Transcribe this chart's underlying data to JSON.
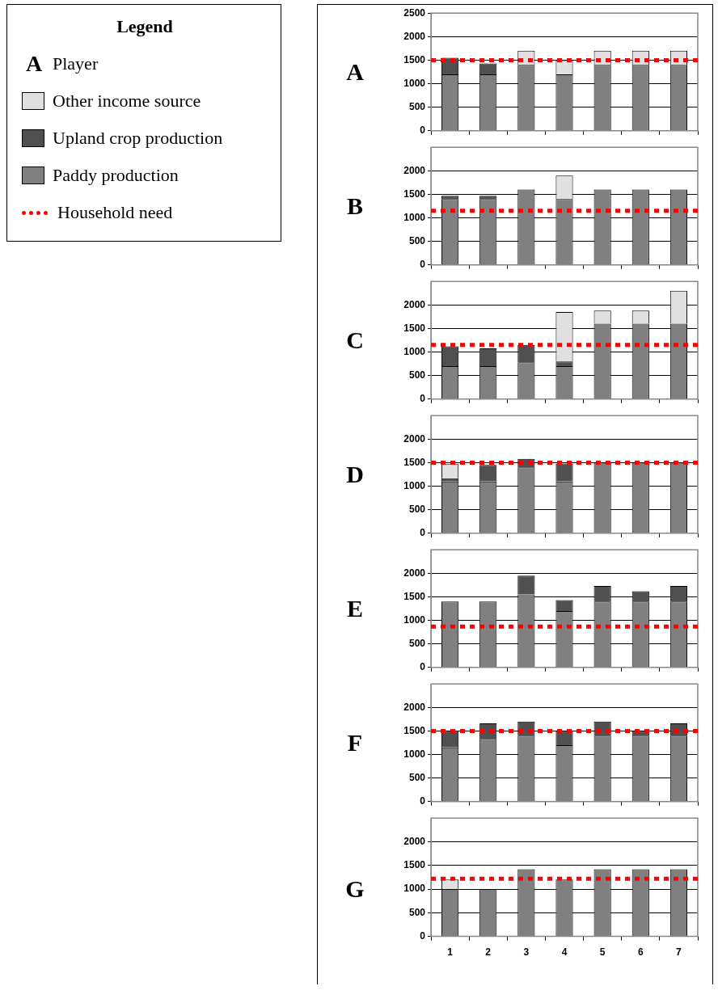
{
  "chart_data": [
    {
      "type": "bar",
      "title": "A",
      "legend_title": "Legend",
      "annotations": [
        "Player"
      ],
      "legend": "left",
      "stacked": true,
      "categories": [
        "1",
        "2",
        "3",
        "4",
        "5",
        "6",
        "7"
      ],
      "ylim": [
        0,
        2500
      ],
      "yticks": [
        0,
        500,
        1000,
        1500,
        2000,
        2500
      ],
      "grid": "y",
      "tick_labels": "y",
      "series": [
        {
          "name": "Paddy production",
          "color": "#808080",
          "values": [
            1200,
            1200,
            1400,
            1200,
            1400,
            1400,
            1400
          ]
        },
        {
          "name": "Upland crop production",
          "color": "#505050",
          "values": [
            350,
            230,
            null,
            null,
            null,
            null,
            null
          ]
        },
        {
          "name": "Other income source",
          "color": "#e0e0e0",
          "values": [
            null,
            null,
            300,
            300,
            300,
            300,
            300
          ]
        }
      ],
      "ref_lines": [
        {
          "axis": "y",
          "value": 1500,
          "label": "Household need",
          "color": "#ff0000",
          "line_style": "dotted"
        }
      ]
    },
    {
      "type": "bar",
      "title": "B",
      "stacked": true,
      "categories": [
        "1",
        "2",
        "3",
        "4",
        "5",
        "6",
        "7"
      ],
      "ylim": [
        0,
        2500
      ],
      "yticks": [
        0,
        500,
        1000,
        1500,
        2000
      ],
      "grid": "y",
      "tick_labels": "y",
      "series": [
        {
          "color": "#808080",
          "values": [
            1400,
            1400,
            1600,
            1400,
            1600,
            1600,
            1600
          ]
        },
        {
          "color": "#505050",
          "values": [
            70,
            70,
            null,
            null,
            null,
            null,
            null
          ]
        },
        {
          "color": "#e0e0e0",
          "values": [
            null,
            null,
            null,
            500,
            null,
            null,
            null
          ]
        }
      ],
      "ref_lines": [
        {
          "axis": "y",
          "value": 1150,
          "color": "#ff0000",
          "line_style": "dotted"
        }
      ]
    },
    {
      "type": "bar",
      "title": "C",
      "stacked": true,
      "categories": [
        "1",
        "2",
        "3",
        "4",
        "5",
        "6",
        "7"
      ],
      "ylim": [
        0,
        2500
      ],
      "yticks": [
        0,
        500,
        1000,
        1500,
        2000
      ],
      "grid": "y",
      "tick_labels": "y",
      "series": [
        {
          "color": "#808080",
          "values": [
            700,
            700,
            780,
            700,
            1600,
            1600,
            1600
          ]
        },
        {
          "color": "#505050",
          "values": [
            420,
            380,
            370,
            100,
            null,
            null,
            null
          ]
        },
        {
          "color": "#e0e0e0",
          "values": [
            null,
            null,
            null,
            1050,
            280,
            280,
            700
          ]
        }
      ],
      "ref_lines": [
        {
          "axis": "y",
          "value": 1150,
          "color": "#ff0000",
          "line_style": "dotted"
        }
      ]
    },
    {
      "type": "bar",
      "title": "D",
      "stacked": true,
      "categories": [
        "1",
        "2",
        "3",
        "4",
        "5",
        "6",
        "7"
      ],
      "ylim": [
        0,
        2500
      ],
      "yticks": [
        0,
        500,
        1000,
        1500,
        2000
      ],
      "grid": "y",
      "tick_labels": "y",
      "series": [
        {
          "color": "#808080",
          "values": [
            1100,
            1100,
            1400,
            1100,
            1500,
            1500,
            1500
          ]
        },
        {
          "color": "#505050",
          "values": [
            70,
            350,
            180,
            380,
            null,
            null,
            null
          ]
        },
        {
          "color": "#e0e0e0",
          "values": [
            300,
            null,
            null,
            null,
            null,
            null,
            null
          ]
        }
      ],
      "ref_lines": [
        {
          "axis": "y",
          "value": 1500,
          "color": "#ff0000",
          "line_style": "dotted"
        }
      ]
    },
    {
      "type": "bar",
      "title": "E",
      "stacked": true,
      "categories": [
        "1",
        "2",
        "3",
        "4",
        "5",
        "6",
        "7"
      ],
      "ylim": [
        0,
        2500
      ],
      "yticks": [
        0,
        500,
        1000,
        1500,
        2000
      ],
      "grid": "y",
      "tick_labels": "y",
      "series": [
        {
          "color": "#808080",
          "values": [
            1400,
            1400,
            1550,
            1200,
            1400,
            1400,
            1400
          ]
        },
        {
          "color": "#505050",
          "values": [
            null,
            null,
            400,
            230,
            330,
            220,
            330
          ]
        }
      ],
      "ref_lines": [
        {
          "axis": "y",
          "value": 870,
          "color": "#ff0000",
          "line_style": "dotted"
        }
      ]
    },
    {
      "type": "bar",
      "title": "F",
      "stacked": true,
      "categories": [
        "1",
        "2",
        "3",
        "4",
        "5",
        "6",
        "7"
      ],
      "ylim": [
        0,
        2500
      ],
      "yticks": [
        0,
        500,
        1000,
        1500,
        2000
      ],
      "grid": "y",
      "tick_labels": "y",
      "series": [
        {
          "color": "#808080",
          "values": [
            1150,
            1330,
            1400,
            1200,
            1400,
            1400,
            1400
          ]
        },
        {
          "color": "#505050",
          "values": [
            350,
            330,
            300,
            300,
            300,
            100,
            260
          ]
        }
      ],
      "ref_lines": [
        {
          "axis": "y",
          "value": 1500,
          "color": "#ff0000",
          "line_style": "dotted"
        }
      ]
    },
    {
      "type": "bar",
      "title": "G",
      "stacked": true,
      "categories": [
        "1",
        "2",
        "3",
        "4",
        "5",
        "6",
        "7"
      ],
      "ylim": [
        0,
        2500
      ],
      "yticks": [
        0,
        500,
        1000,
        1500,
        2000
      ],
      "grid": "y",
      "series": [
        {
          "color": "#808080",
          "values": [
            1000,
            1000,
            1420,
            1200,
            1420,
            1420,
            1420
          ]
        },
        {
          "color": "#e0e0e0",
          "values": [
            200,
            null,
            null,
            null,
            null,
            null,
            null
          ]
        }
      ],
      "ref_lines": [
        {
          "axis": "y",
          "value": 1220,
          "color": "#ff0000",
          "line_style": "dotted"
        }
      ]
    }
  ]
}
